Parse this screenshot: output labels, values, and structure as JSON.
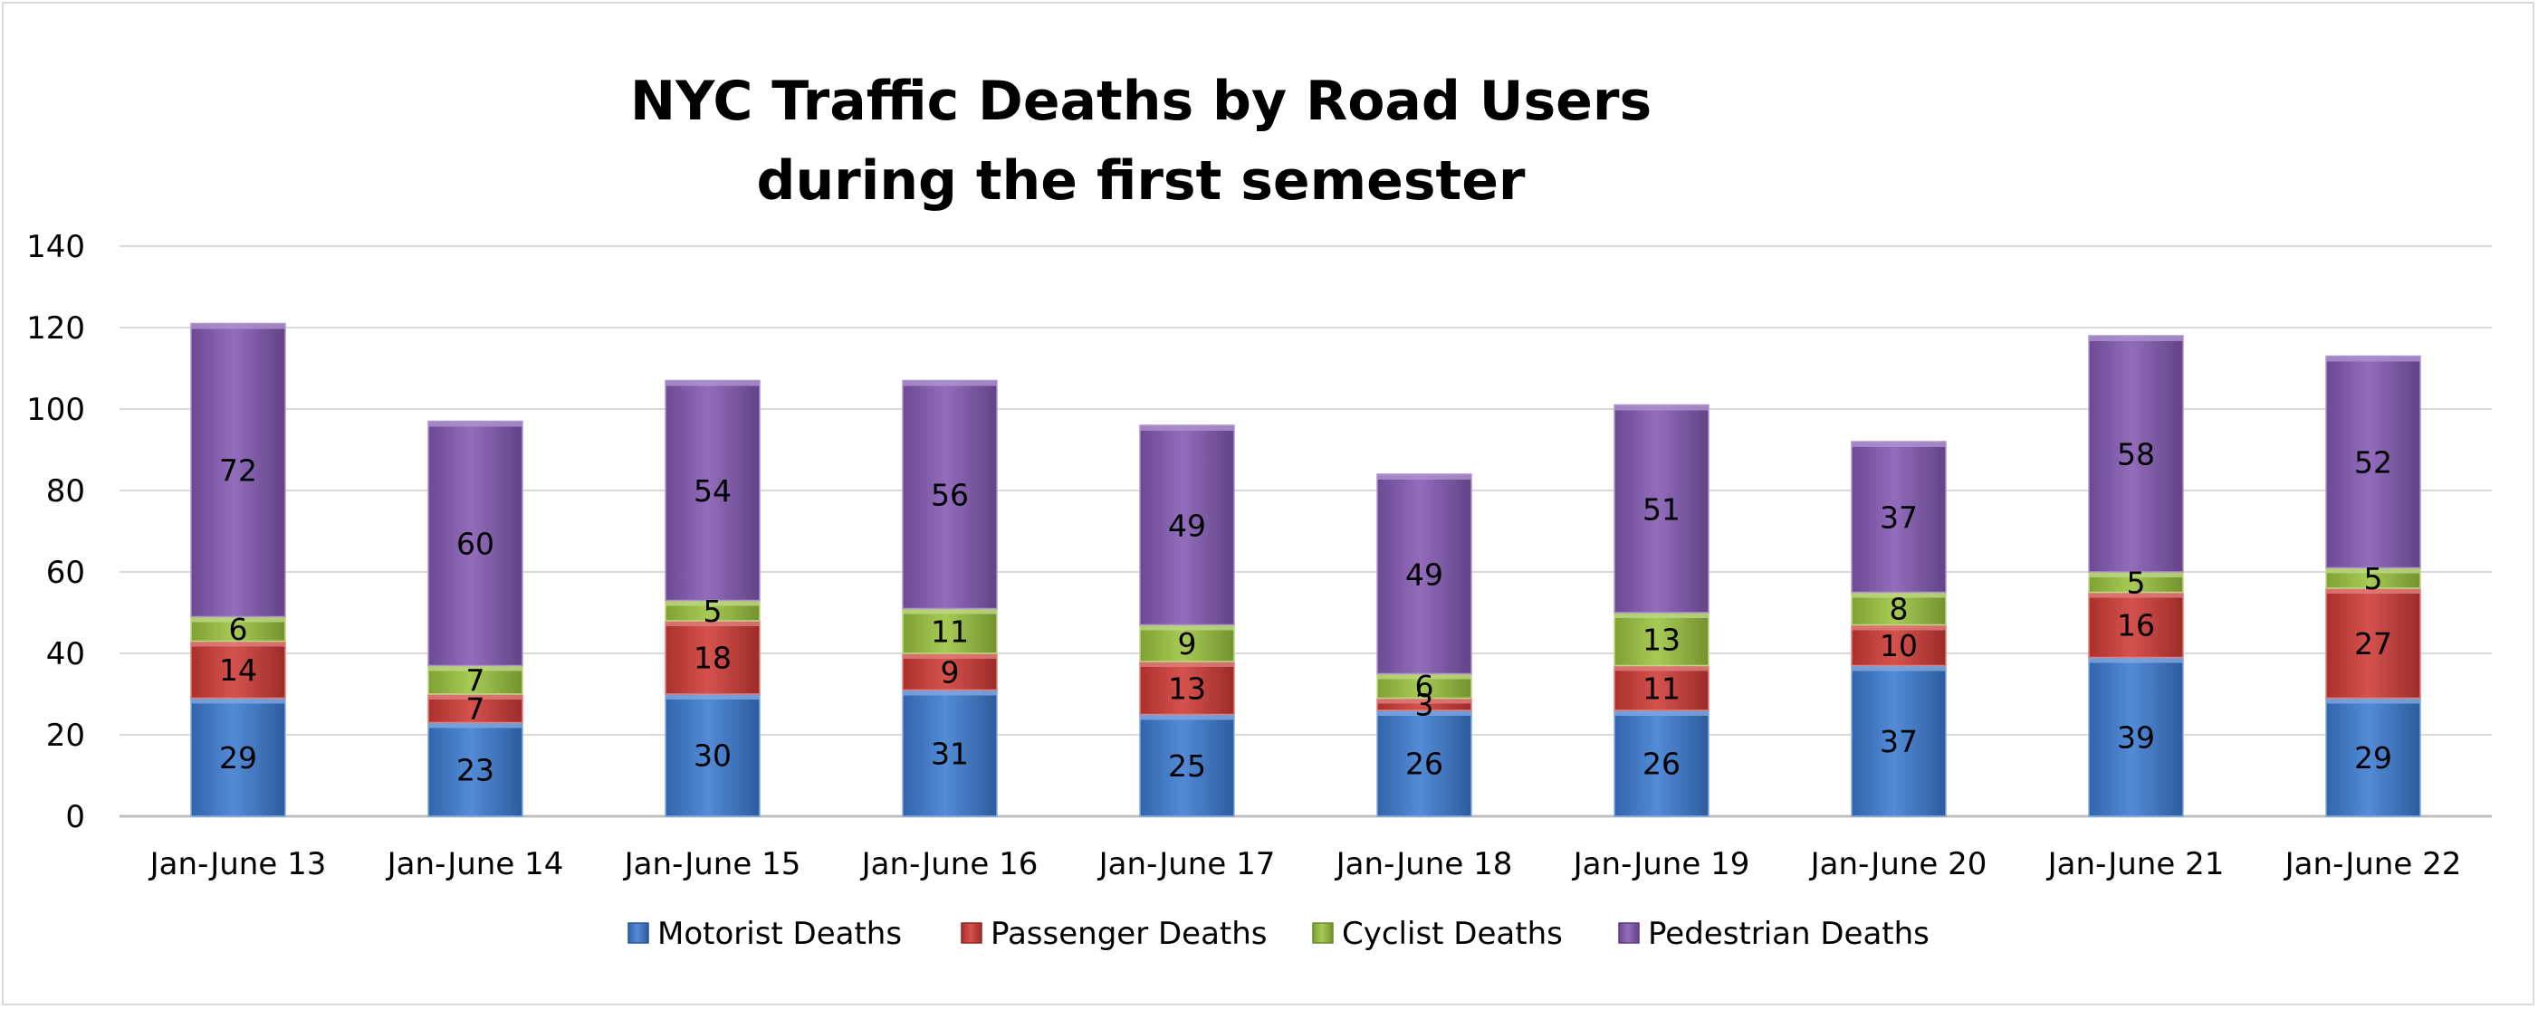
{
  "chart_data": {
    "type": "bar",
    "stacked": true,
    "title": [
      "NYC Traffic Deaths by Road Users",
      "during the first semester"
    ],
    "xlabel": "",
    "ylabel": "",
    "ylim": [
      0,
      140
    ],
    "yticks": [
      0,
      20,
      40,
      60,
      80,
      100,
      120,
      140
    ],
    "grid": true,
    "legend_position": "bottom",
    "categories": [
      "Jan-June 13",
      "Jan-June 14",
      "Jan-June 15",
      "Jan-June 16",
      "Jan-June 17",
      "Jan-June 18",
      "Jan-June 19",
      "Jan-June 20",
      "Jan-June 21",
      "Jan-June 22"
    ],
    "series": [
      {
        "name": "Motorist Deaths",
        "color": "#3c7bd1",
        "values": [
          29,
          23,
          30,
          31,
          25,
          26,
          26,
          37,
          39,
          29
        ]
      },
      {
        "name": "Passenger Deaths",
        "color": "#cf3a36",
        "values": [
          14,
          7,
          18,
          9,
          13,
          3,
          11,
          10,
          16,
          27
        ]
      },
      {
        "name": "Cyclist Deaths",
        "color": "#9bc33e",
        "values": [
          6,
          7,
          5,
          11,
          9,
          6,
          13,
          8,
          5,
          5
        ]
      },
      {
        "name": "Pedestrian Deaths",
        "color": "#8359b3",
        "values": [
          72,
          60,
          54,
          56,
          49,
          49,
          51,
          37,
          58,
          52
        ]
      }
    ]
  }
}
